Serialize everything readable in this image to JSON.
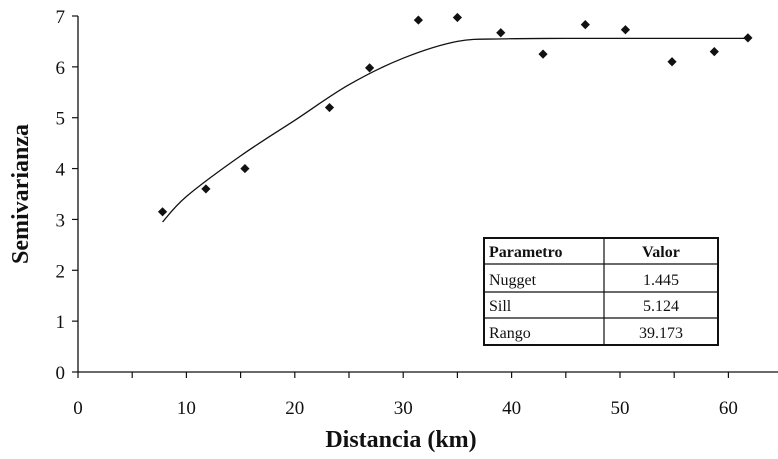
{
  "chart_data": {
    "type": "scatter",
    "title": "",
    "xlabel": "Distancia (km)",
    "ylabel": "Semivarianza",
    "xlim": [
      0,
      65
    ],
    "ylim": [
      0,
      7
    ],
    "xticks": [
      0,
      10,
      20,
      30,
      40,
      50,
      60
    ],
    "yticks": [
      0,
      1,
      2,
      3,
      4,
      5,
      6,
      7
    ],
    "grid": false,
    "series": [
      {
        "kind": "points",
        "x": [
          7.8,
          11.8,
          15.4,
          23.2,
          26.9,
          31.4,
          35.0,
          39.0,
          42.9,
          46.8,
          50.5,
          54.8,
          58.7,
          61.8
        ],
        "y": [
          3.15,
          3.6,
          4.0,
          5.2,
          5.98,
          6.92,
          6.97,
          6.67,
          6.25,
          6.83,
          6.73,
          6.1,
          6.3,
          6.57
        ]
      },
      {
        "kind": "fitted-curve",
        "x": [
          7.8,
          10,
          15,
          20,
          25,
          30,
          35,
          39.2,
          45,
          55,
          62
        ],
        "y": [
          2.95,
          3.45,
          4.25,
          4.95,
          5.65,
          6.17,
          6.5,
          6.55,
          6.56,
          6.56,
          6.56
        ]
      }
    ],
    "table": {
      "headers": [
        "Parametro",
        "Valor"
      ],
      "rows": [
        [
          "Nugget",
          "1.445"
        ],
        [
          "Sill",
          "5.124"
        ],
        [
          "Rango",
          "39.173"
        ]
      ]
    }
  }
}
